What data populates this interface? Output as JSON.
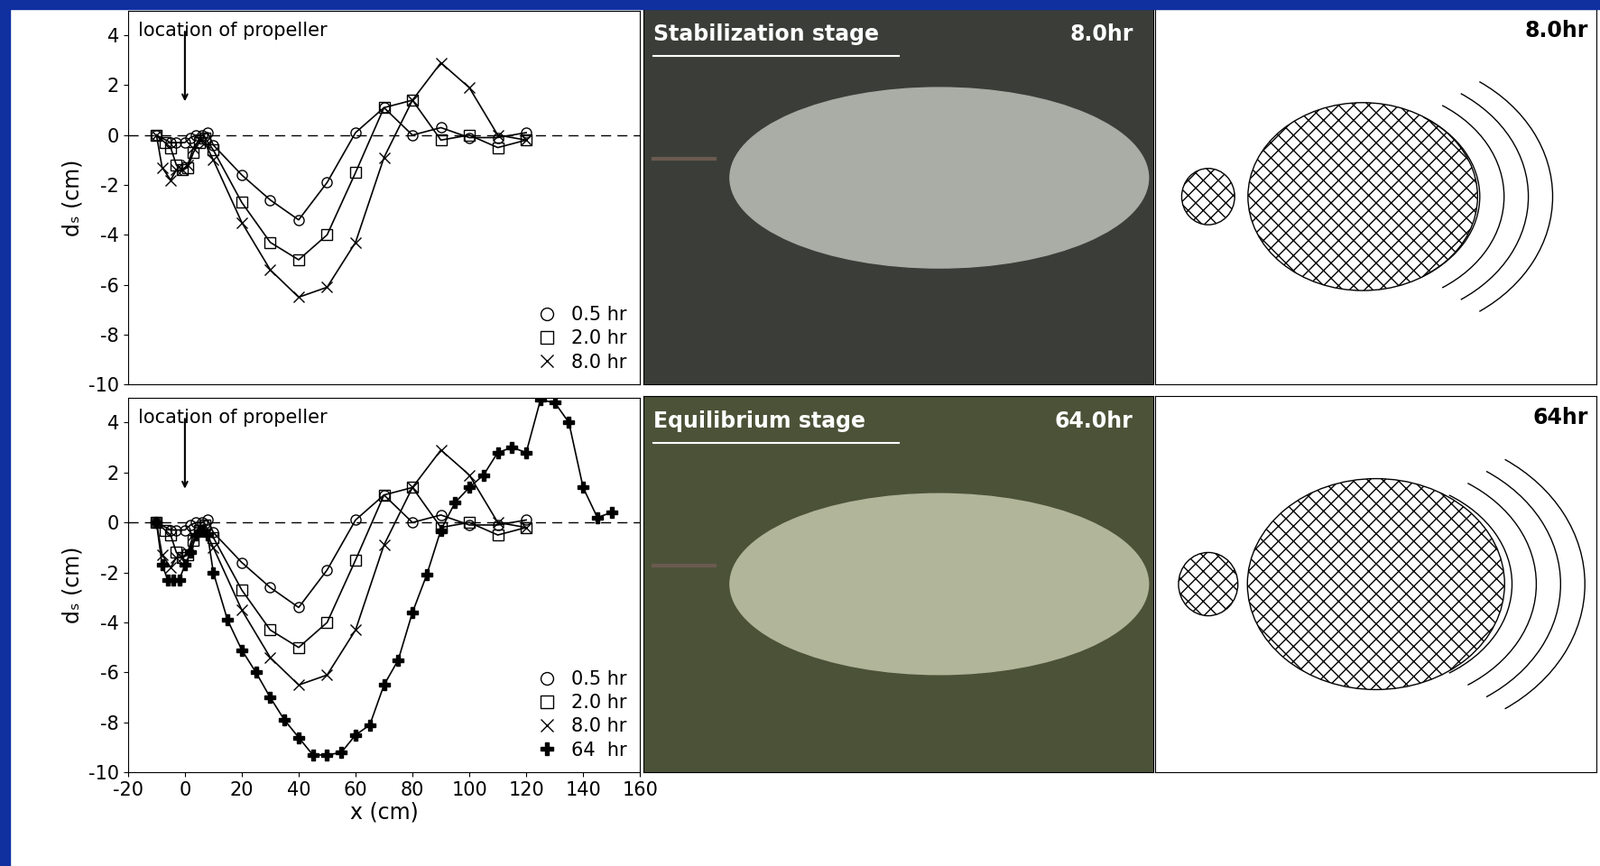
{
  "chart_data": [
    {
      "type": "line",
      "annotation": {
        "text": "location of propeller",
        "arrow_x": 0
      },
      "zero_line": 0,
      "ylabel": "dₛ (cm)",
      "xlim": [
        -20,
        160
      ],
      "ylim": [
        -10,
        5
      ],
      "xticks": [
        -20,
        0,
        20,
        40,
        60,
        80,
        100,
        120,
        140,
        160
      ],
      "yticks": [
        -10,
        -8,
        -6,
        -4,
        -2,
        0,
        2,
        4
      ],
      "tick_labels": "y",
      "legend": "lower right",
      "series": [
        {
          "name": "0.5 hr",
          "color": "#000000",
          "marker": "circle",
          "x": [
            -10,
            -5,
            -3,
            0,
            2,
            4,
            6,
            8,
            10,
            20,
            30,
            40,
            50,
            60,
            70,
            80,
            90,
            100,
            110,
            120
          ],
          "values": [
            0,
            -0.3,
            -0.3,
            -0.3,
            -0.1,
            0,
            0,
            0.1,
            -0.4,
            -1.6,
            -2.6,
            -3.4,
            -1.9,
            0.1,
            1.1,
            0,
            0.3,
            -0.1,
            -0.1,
            0.1
          ]
        },
        {
          "name": "2.0 hr",
          "color": "#000000",
          "marker": "square",
          "x": [
            -10,
            -7,
            -5,
            -3,
            -1,
            1,
            3,
            5,
            7,
            10,
            20,
            30,
            40,
            50,
            60,
            70,
            80,
            90,
            100,
            110,
            120
          ],
          "values": [
            0,
            -0.3,
            -0.5,
            -1.2,
            -1.4,
            -1.3,
            -0.7,
            -0.3,
            -0.1,
            -0.6,
            -2.7,
            -4.3,
            -5.0,
            -4.0,
            -1.5,
            1.1,
            1.4,
            -0.2,
            0,
            -0.5,
            -0.2
          ]
        },
        {
          "name": "8.0 hr",
          "color": "#000000",
          "marker": "x",
          "x": [
            -10,
            -8,
            -5,
            -3,
            -1,
            1,
            3,
            5,
            7,
            10,
            20,
            30,
            40,
            50,
            60,
            70,
            80,
            90,
            100,
            110,
            120
          ],
          "values": [
            0,
            -1.3,
            -1.8,
            -1.4,
            -1.4,
            -1.2,
            -0.5,
            -0.2,
            -0.3,
            -1.0,
            -3.5,
            -5.4,
            -6.5,
            -6.1,
            -4.3,
            -0.9,
            1.4,
            2.9,
            1.9,
            0,
            -0.2
          ]
        }
      ]
    },
    {
      "type": "line",
      "annotation": {
        "text": "location of propeller",
        "arrow_x": 0
      },
      "zero_line": 0,
      "ylabel": "dₛ (cm)",
      "xlabel": "x (cm)",
      "xlim": [
        -20,
        160
      ],
      "ylim": [
        -10,
        5
      ],
      "xticks": [
        -20,
        0,
        20,
        40,
        60,
        80,
        100,
        120,
        140,
        160
      ],
      "yticks": [
        -10,
        -8,
        -6,
        -4,
        -2,
        0,
        2,
        4
      ],
      "tick_labels": true,
      "legend": "lower right",
      "series": [
        {
          "name": "0.5 hr",
          "color": "#000000",
          "marker": "circle",
          "x": [
            -10,
            -5,
            -3,
            0,
            2,
            4,
            6,
            8,
            10,
            20,
            30,
            40,
            50,
            60,
            70,
            80,
            90,
            100,
            110,
            120
          ],
          "values": [
            0,
            -0.3,
            -0.3,
            -0.3,
            -0.1,
            0,
            0,
            0.1,
            -0.4,
            -1.6,
            -2.6,
            -3.4,
            -1.9,
            0.1,
            1.1,
            0,
            0.3,
            -0.1,
            -0.1,
            0.1
          ]
        },
        {
          "name": "2.0 hr",
          "color": "#000000",
          "marker": "square",
          "x": [
            -10,
            -7,
            -5,
            -3,
            -1,
            1,
            3,
            5,
            7,
            10,
            20,
            30,
            40,
            50,
            60,
            70,
            80,
            90,
            100,
            110,
            120
          ],
          "values": [
            0,
            -0.3,
            -0.5,
            -1.2,
            -1.4,
            -1.3,
            -0.7,
            -0.3,
            -0.1,
            -0.6,
            -2.7,
            -4.3,
            -5.0,
            -4.0,
            -1.5,
            1.1,
            1.4,
            -0.2,
            0,
            -0.5,
            -0.2
          ]
        },
        {
          "name": "8.0 hr",
          "color": "#000000",
          "marker": "x",
          "x": [
            -10,
            -8,
            -5,
            -3,
            -1,
            1,
            3,
            5,
            7,
            10,
            20,
            30,
            40,
            50,
            60,
            70,
            80,
            90,
            100,
            110,
            120
          ],
          "values": [
            0,
            -1.3,
            -1.8,
            -1.4,
            -1.4,
            -1.2,
            -0.5,
            -0.2,
            -0.3,
            -1.0,
            -3.5,
            -5.4,
            -6.5,
            -6.1,
            -4.3,
            -0.9,
            1.4,
            2.9,
            1.9,
            0,
            -0.2
          ]
        },
        {
          "name": "64  hr",
          "color": "#000000",
          "marker": "plus",
          "x": [
            -10,
            -8,
            -6,
            -4,
            -2,
            0,
            2,
            4,
            6,
            8,
            10,
            15,
            20,
            25,
            30,
            35,
            40,
            45,
            50,
            55,
            60,
            65,
            70,
            75,
            80,
            85,
            90,
            95,
            100,
            105,
            110,
            115,
            120,
            125,
            130,
            135,
            140,
            145,
            150
          ],
          "values": [
            0,
            -1.7,
            -2.3,
            -2.3,
            -2.3,
            -1.7,
            -1.2,
            -0.5,
            -0.3,
            -0.5,
            -2.0,
            -3.9,
            -5.1,
            -6.0,
            -7.0,
            -7.9,
            -8.6,
            -9.3,
            -9.3,
            -9.2,
            -8.5,
            -8.1,
            -6.5,
            -5.5,
            -3.6,
            -2.1,
            -0.3,
            0.8,
            1.4,
            1.9,
            2.8,
            3.0,
            2.8,
            4.9,
            4.8,
            4.0,
            1.4,
            0.2,
            0.4
          ]
        }
      ]
    }
  ],
  "photos": [
    {
      "label": "Stabilization stage",
      "time": "8.0hr"
    },
    {
      "label": "Equilibrium stage",
      "time": "64.0hr"
    }
  ],
  "diagrams": [
    {
      "time": "8.0hr"
    },
    {
      "time": "64hr"
    }
  ]
}
